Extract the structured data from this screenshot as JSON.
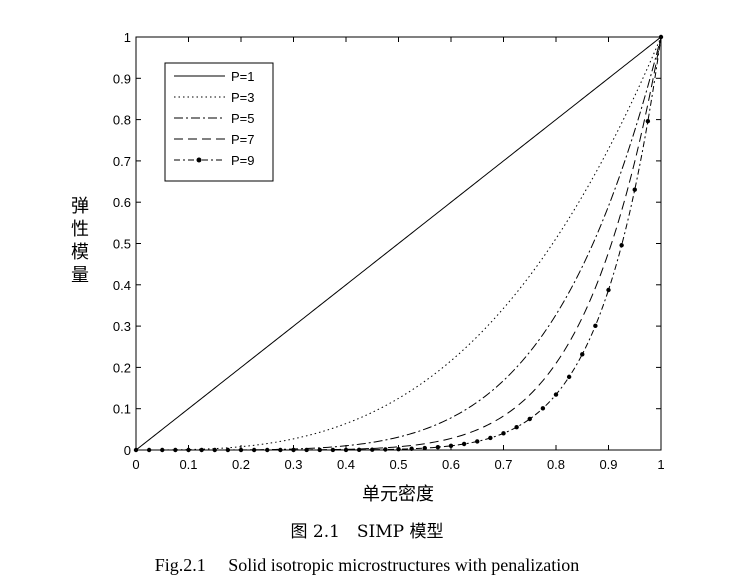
{
  "chart_data": {
    "type": "line",
    "xlabel": "单元密度",
    "ylabel": "弹性模量",
    "xlim": [
      0,
      1
    ],
    "ylim": [
      0,
      1
    ],
    "x_ticks": [
      "0",
      "0.1",
      "0.2",
      "0.3",
      "0.4",
      "0.5",
      "0.6",
      "0.7",
      "0.8",
      "0.9",
      "1"
    ],
    "y_ticks": [
      "0",
      "0.1",
      "0.2",
      "0.3",
      "0.4",
      "0.5",
      "0.6",
      "0.7",
      "0.8",
      "0.9",
      "1"
    ],
    "grid": false,
    "legend_position": "top-left",
    "function": "y = x^P",
    "x": [
      0,
      0.025,
      0.05,
      0.075,
      0.1,
      0.125,
      0.15,
      0.175,
      0.2,
      0.225,
      0.25,
      0.275,
      0.3,
      0.325,
      0.35,
      0.375,
      0.4,
      0.425,
      0.45,
      0.475,
      0.5,
      0.525,
      0.55,
      0.575,
      0.6,
      0.625,
      0.65,
      0.675,
      0.7,
      0.725,
      0.75,
      0.775,
      0.8,
      0.825,
      0.85,
      0.875,
      0.9,
      0.925,
      0.95,
      0.975,
      1
    ],
    "series": [
      {
        "name": "P=1",
        "p": 1,
        "style": "solid"
      },
      {
        "name": "P=3",
        "p": 3,
        "style": "dotted"
      },
      {
        "name": "P=5",
        "p": 5,
        "style": "dashdot"
      },
      {
        "name": "P=7",
        "p": 7,
        "style": "dashed"
      },
      {
        "name": "P=9",
        "p": 9,
        "style": "dashdot-marker"
      }
    ]
  },
  "caption_cn": "图 2.1　SIMP 模型",
  "caption_en": "Fig.2.1　 Solid isotropic microstructures with penalization"
}
